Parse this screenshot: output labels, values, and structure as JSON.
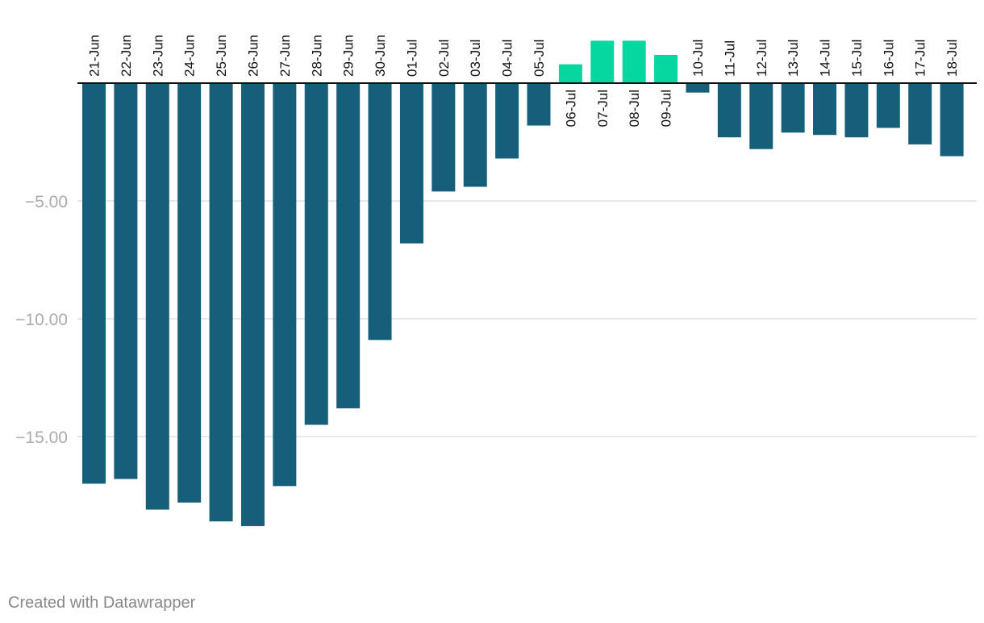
{
  "chart_data": {
    "type": "bar",
    "title": "",
    "xlabel": "",
    "ylabel": "",
    "ylim": [
      -20,
      3
    ],
    "yticks": [
      -5,
      -10,
      -15
    ],
    "ytick_labels": [
      "−5.00",
      "−10.00",
      "−15.00"
    ],
    "categories": [
      "21-Jun",
      "22-Jun",
      "23-Jun",
      "24-Jun",
      "25-Jun",
      "26-Jun",
      "27-Jun",
      "28-Jun",
      "29-Jun",
      "30-Jun",
      "01-Jul",
      "02-Jul",
      "03-Jul",
      "04-Jul",
      "05-Jul",
      "06-Jul",
      "07-Jul",
      "08-Jul",
      "09-Jul",
      "10-Jul",
      "11-Jul",
      "12-Jul",
      "13-Jul",
      "14-Jul",
      "15-Jul",
      "16-Jul",
      "17-Jul",
      "18-Jul"
    ],
    "values": [
      -17.0,
      -16.8,
      -18.1,
      -17.8,
      -18.6,
      -18.8,
      -17.1,
      -14.5,
      -13.8,
      -10.9,
      -6.8,
      -4.6,
      -4.4,
      -3.2,
      -1.8,
      0.8,
      1.8,
      1.8,
      1.2,
      -0.4,
      -2.3,
      -2.8,
      -2.1,
      -2.2,
      -2.3,
      -1.9,
      -2.6,
      -3.1
    ],
    "colors": {
      "negative": "#165f7a",
      "positive": "#06d6a0",
      "grid": "#e0e0e0",
      "baseline": "#111111"
    }
  },
  "footer": {
    "credit": "Created with Datawrapper"
  }
}
